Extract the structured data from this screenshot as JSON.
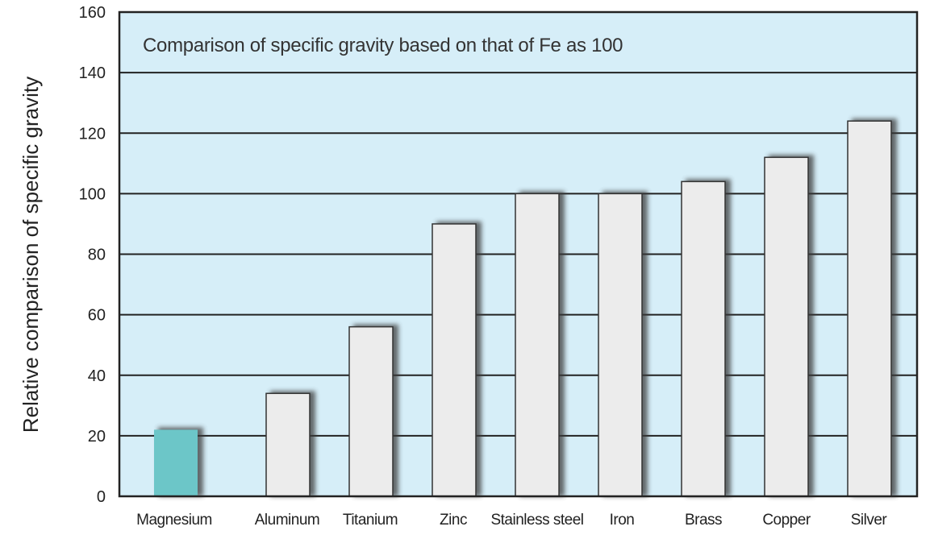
{
  "chart_data": {
    "type": "bar",
    "title": "Comparison of specific gravity based on that of Fe as 100",
    "xlabel": "",
    "ylabel": "Relative comparison of specific gravity",
    "ylim": [
      0,
      160
    ],
    "yticks": [
      0,
      20,
      40,
      60,
      80,
      100,
      120,
      140,
      160
    ],
    "grid": true,
    "categories": [
      "Magnesium",
      "Aluminum",
      "Titanium",
      "Zinc",
      "Stainless steel",
      "Iron",
      "Brass",
      "Copper",
      "Silver"
    ],
    "values": [
      22,
      34,
      56,
      90,
      100,
      100,
      104,
      112,
      124
    ],
    "highlight_index": 0,
    "colors": {
      "plot_background": "#d6eef8",
      "grid": "#222222",
      "bar": "#ececec",
      "bar_outline": "#333333",
      "highlight_bar": "#6cc6c8",
      "shadow": "#3a3a3a"
    }
  }
}
